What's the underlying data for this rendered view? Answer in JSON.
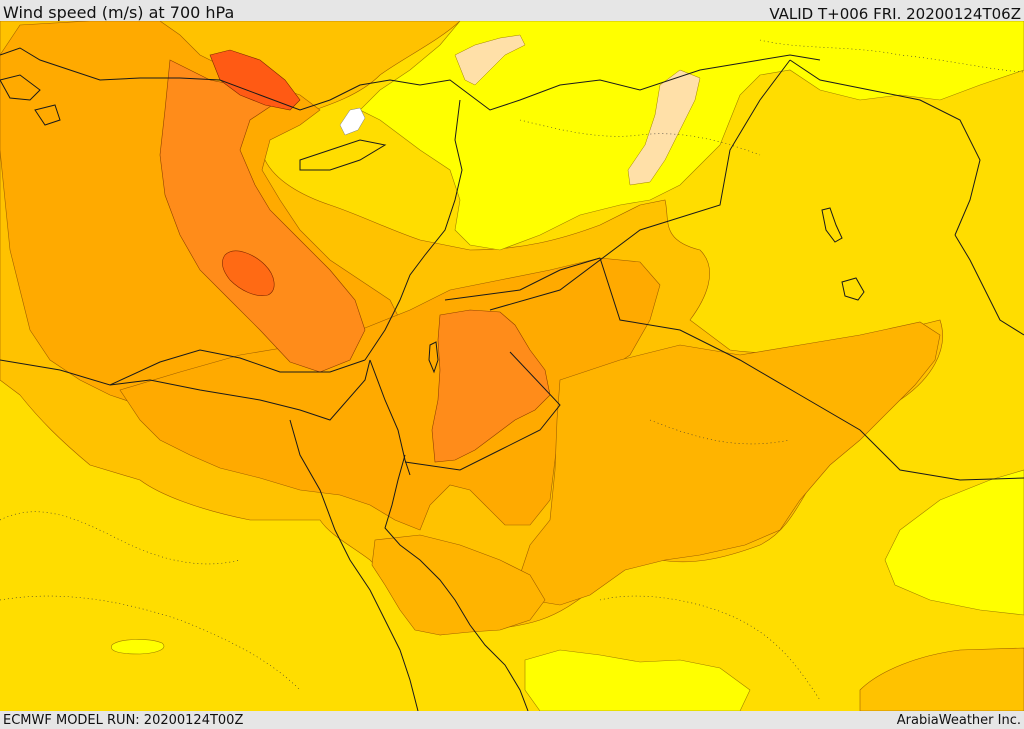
{
  "header": {
    "title": "Wind speed (m/s) at 700 hPa",
    "valid": "VALID T+006 FRI. 20200124T06Z"
  },
  "footer": {
    "model_run": "ECMWF MODEL RUN: 20200124T00Z",
    "credit": "ArabiaWeather Inc."
  },
  "colors": {
    "bright_yellow": "#ffff00",
    "yellow": "#ffdd00",
    "light_orange": "#ffc200",
    "orange": "#ffaa00",
    "dark_orange": "#ff8c1a",
    "deep_orange": "#ff7a10",
    "red_orange": "#ff5a14",
    "peach": "#ffe0a8",
    "white": "#ffffff",
    "border": "#1a1a1a"
  }
}
